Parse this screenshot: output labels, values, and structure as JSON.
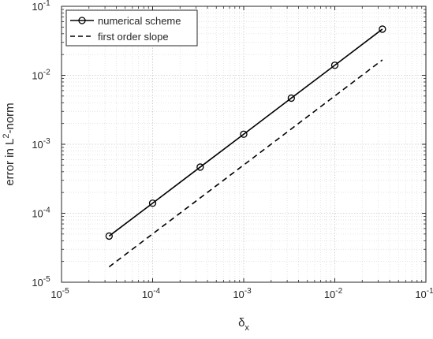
{
  "chart_data": {
    "type": "line",
    "xscale": "log",
    "yscale": "log",
    "xlim": [
      1e-05,
      0.1
    ],
    "ylim": [
      1e-05,
      0.1
    ],
    "grid": true,
    "minor_grid": true,
    "xlabel": {
      "symbol": "δ",
      "subscript": "x"
    },
    "ylabel": {
      "base": "error in L",
      "superscript": "2",
      "suffix": "-norm"
    },
    "xticks": [
      {
        "value": 1e-05,
        "label": "10",
        "exp": "-5"
      },
      {
        "value": 0.0001,
        "label": "10",
        "exp": "-4"
      },
      {
        "value": 0.001,
        "label": "10",
        "exp": "-3"
      },
      {
        "value": 0.01,
        "label": "10",
        "exp": "-2"
      },
      {
        "value": 0.1,
        "label": "10",
        "exp": "-1"
      }
    ],
    "yticks": [
      {
        "value": 1e-05,
        "label": "10",
        "exp": "-5"
      },
      {
        "value": 0.0001,
        "label": "10",
        "exp": "-4"
      },
      {
        "value": 0.001,
        "label": "10",
        "exp": "-3"
      },
      {
        "value": 0.01,
        "label": "10",
        "exp": "-2"
      },
      {
        "value": 0.1,
        "label": "10",
        "exp": "-1"
      }
    ],
    "legend_position": "top-left",
    "series": [
      {
        "name": "numerical scheme",
        "style": "solid-circle-markers",
        "color": "#000000",
        "x": [
          3.33e-05,
          0.0001,
          0.000333,
          0.001,
          0.00333,
          0.01,
          0.0333
        ],
        "y": [
          4.67e-05,
          0.00014,
          0.000467,
          0.0014,
          0.00467,
          0.014,
          0.0467
        ]
      },
      {
        "name": "first order slope",
        "style": "dashed",
        "color": "#000000",
        "x": [
          3.33e-05,
          0.0333
        ],
        "y": [
          1.67e-05,
          0.0167
        ]
      }
    ]
  }
}
